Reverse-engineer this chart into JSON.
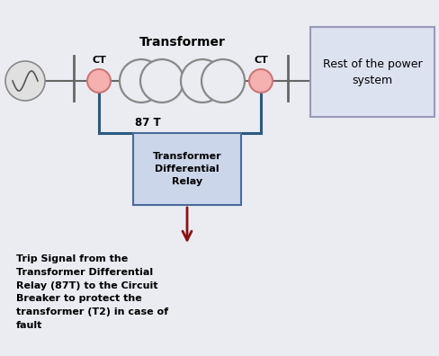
{
  "bg_color": "#eaecf2",
  "line_color": "#666666",
  "ct_circle_color": "#f5b0b0",
  "ct_circle_edge": "#cc7777",
  "relay_box_facecolor": "#ccd6ea",
  "relay_box_edgecolor": "#4a6a9a",
  "power_box_facecolor": "#dde2f0",
  "power_box_edgecolor": "#9999bb",
  "wire_color": "#2a5a80",
  "arrow_color": "#8b1010",
  "transformer_color": "#888888",
  "title_text": "Transformer",
  "ct_label": "CT",
  "relay_label_lines": [
    "Transformer",
    "Differential",
    "Relay"
  ],
  "relay_label_87T": "87 T",
  "power_label_lines": [
    "Rest of the power",
    "system"
  ],
  "trip_text": "Trip Signal from the\nTransformer Differential\nRelay (87T) to the Circuit\nBreaker to protect the\ntransformer (T2) in case of\nfault",
  "source_circle_color": "#e0e0e0",
  "source_circle_edge": "#888888"
}
